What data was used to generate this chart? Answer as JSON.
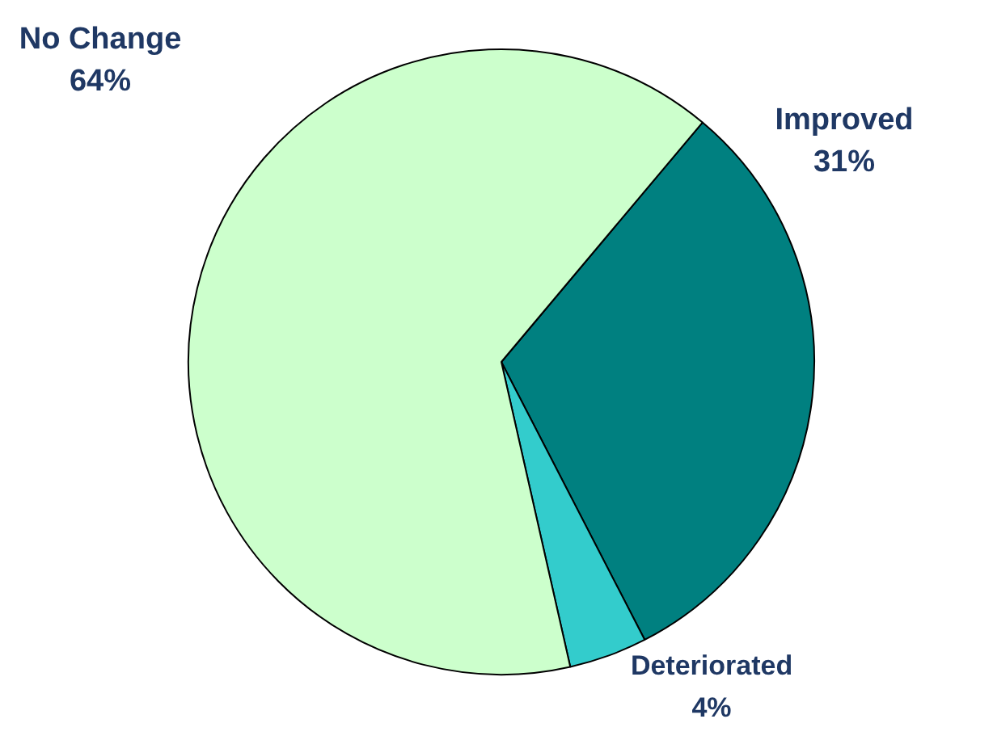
{
  "chart_data": {
    "type": "pie",
    "categories": [
      "Improved",
      "Deteriorated",
      "No Change"
    ],
    "values": [
      31,
      4,
      64
    ],
    "colors": [
      "#008080",
      "#33cccc",
      "#ccffcc"
    ],
    "value_labels": [
      "31%",
      "4%",
      "64%"
    ],
    "legend": false
  }
}
